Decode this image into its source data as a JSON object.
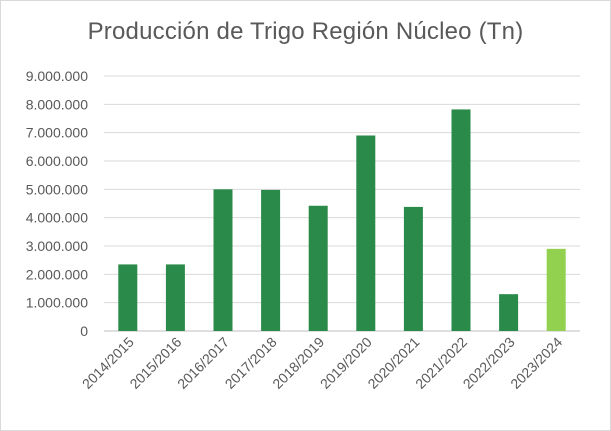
{
  "chart_data": {
    "type": "bar",
    "title": "Producción de Trigo Región Núcleo  (Tn)",
    "xlabel": "",
    "ylabel": "",
    "categories": [
      "2014/2015",
      "2015/2016",
      "2016/2017",
      "2017/2018",
      "2018/2019",
      "2019/2020",
      "2020/2021",
      "2021/2022",
      "2022/2023",
      "2023/2024"
    ],
    "series": [
      {
        "values": [
          2350000,
          2350000,
          5000000,
          4980000,
          4420000,
          6900000,
          4380000,
          7820000,
          1300000,
          2900000
        ]
      }
    ],
    "bar_colors": [
      "#2a8a4a",
      "#2a8a4a",
      "#2a8a4a",
      "#2a8a4a",
      "#2a8a4a",
      "#2a8a4a",
      "#2a8a4a",
      "#2a8a4a",
      "#2a8a4a",
      "#92d050"
    ],
    "ylim": [
      0,
      9000000
    ],
    "yticks": [
      0,
      1000000,
      2000000,
      3000000,
      4000000,
      5000000,
      6000000,
      7000000,
      8000000,
      9000000
    ],
    "ytick_labels": [
      "0",
      "1.000.000",
      "2.000.000",
      "3.000.000",
      "4.000.000",
      "5.000.000",
      "6.000.000",
      "7.000.000",
      "8.000.000",
      "9.000.000"
    ],
    "grid": true,
    "legend": "none"
  }
}
